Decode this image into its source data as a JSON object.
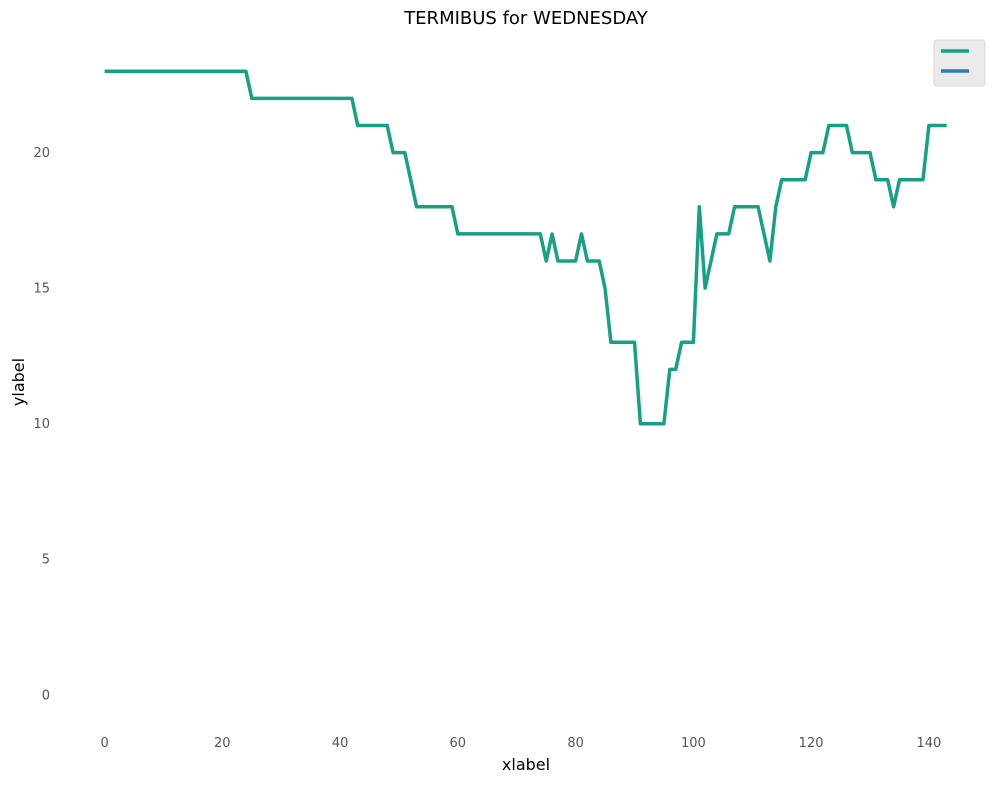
{
  "chart_data": {
    "type": "line",
    "title": "TERMIBUS for WEDNESDAY",
    "xlabel": "xlabel",
    "ylabel": "ylabel",
    "xlim": [
      -4,
      148
    ],
    "ylim": [
      -1.3,
      24.3
    ],
    "xticks": [
      0,
      20,
      40,
      60,
      80,
      100,
      120,
      140
    ],
    "yticks": [
      0,
      5,
      10,
      15,
      20
    ],
    "grid": false,
    "legend_position": "top-right",
    "series": [
      {
        "color": "#17a085",
        "x": [
          0,
          1,
          2,
          3,
          4,
          5,
          6,
          7,
          8,
          9,
          10,
          11,
          12,
          13,
          14,
          15,
          16,
          17,
          18,
          19,
          20,
          21,
          22,
          23,
          24,
          25,
          26,
          27,
          28,
          29,
          30,
          31,
          32,
          33,
          34,
          35,
          36,
          37,
          38,
          39,
          40,
          41,
          42,
          43,
          44,
          45,
          46,
          47,
          48,
          49,
          50,
          51,
          52,
          53,
          54,
          55,
          56,
          57,
          58,
          59,
          60,
          61,
          62,
          63,
          64,
          65,
          66,
          67,
          68,
          69,
          70,
          71,
          72,
          73,
          74,
          75,
          76,
          77,
          78,
          79,
          80,
          81,
          82,
          83,
          84,
          85,
          86,
          87,
          88,
          89,
          90,
          91,
          92,
          93,
          94,
          95,
          96,
          97,
          98,
          99,
          100,
          101,
          102,
          103,
          104,
          105,
          106,
          107,
          108,
          109,
          110,
          111,
          112,
          113,
          114,
          115,
          116,
          117,
          118,
          119,
          120,
          121,
          122,
          123,
          124,
          125,
          126,
          127,
          128,
          129,
          130,
          131,
          132,
          133,
          134,
          135,
          136,
          137,
          138,
          139,
          140,
          141,
          142,
          143
        ],
        "y": [
          23,
          23,
          23,
          23,
          23,
          23,
          23,
          23,
          23,
          23,
          23,
          23,
          23,
          23,
          23,
          23,
          23,
          23,
          23,
          23,
          23,
          23,
          23,
          23,
          23,
          22,
          22,
          22,
          22,
          22,
          22,
          22,
          22,
          22,
          22,
          22,
          22,
          22,
          22,
          22,
          22,
          22,
          22,
          21,
          21,
          21,
          21,
          21,
          21,
          20,
          20,
          20,
          19,
          18,
          18,
          18,
          18,
          18,
          18,
          18,
          17,
          17,
          17,
          17,
          17,
          17,
          17,
          17,
          17,
          17,
          17,
          17,
          17,
          17,
          17,
          16,
          17,
          16,
          16,
          16,
          16,
          17,
          16,
          16,
          16,
          15,
          13,
          13,
          13,
          13,
          13,
          10,
          10,
          10,
          10,
          10,
          12,
          12,
          13,
          13,
          13,
          18,
          15,
          16,
          17,
          17,
          17,
          18,
          18,
          18,
          18,
          18,
          17,
          16,
          18,
          19,
          19,
          19,
          19,
          19,
          20,
          20,
          20,
          21,
          21,
          21,
          21,
          20,
          20,
          20,
          20,
          19,
          19,
          19,
          18,
          19,
          19,
          19,
          19,
          19,
          21,
          21,
          21,
          21
        ]
      },
      {
        "color": "#2b7bbf",
        "x": [],
        "y": []
      }
    ]
  }
}
